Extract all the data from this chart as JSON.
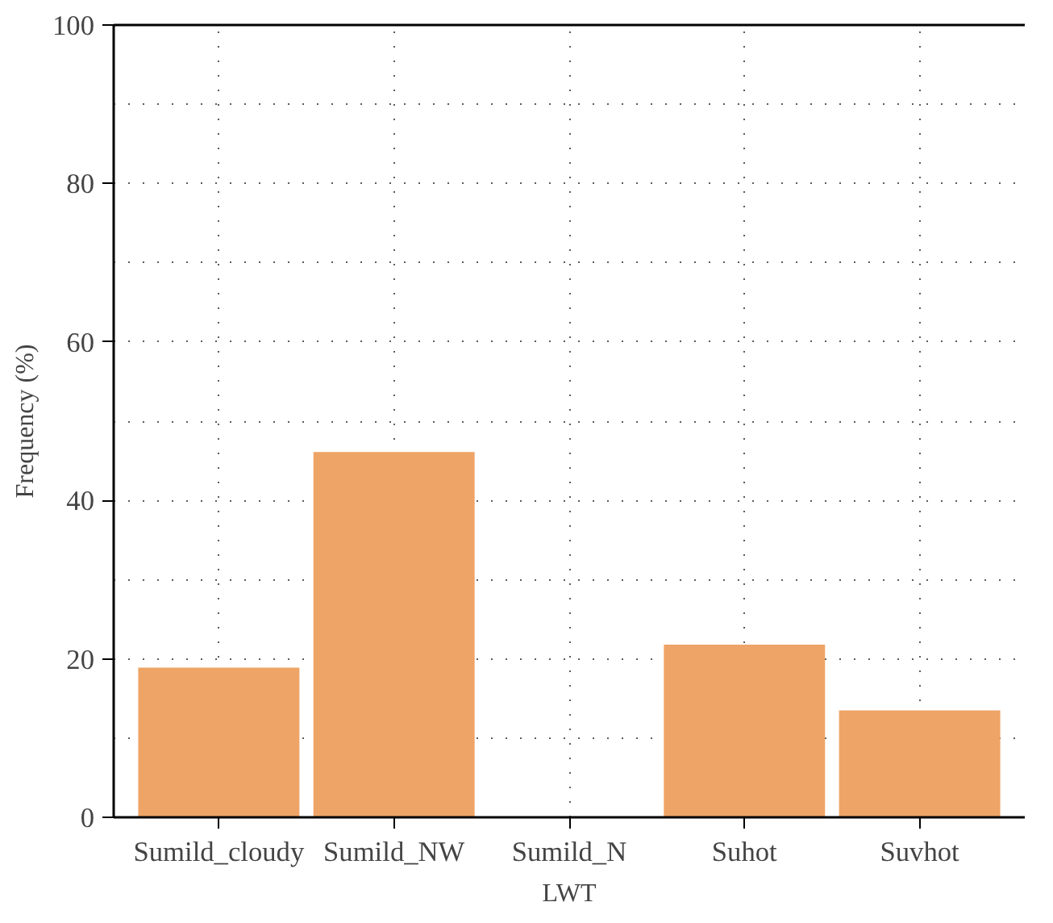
{
  "chart_data": {
    "type": "bar",
    "xlabel": "LWT",
    "ylabel": "Frequency (%)",
    "categories": [
      "Sumild_cloudy",
      "Sumild_NW",
      "Sumild_N",
      "Suhot",
      "Suvhot"
    ],
    "values": [
      18.9,
      46.1,
      0,
      21.8,
      13.5
    ],
    "color": "#eea466",
    "ylim": [
      0,
      100
    ],
    "yticks": [
      0,
      20,
      40,
      60,
      80,
      100
    ],
    "grid": true
  }
}
